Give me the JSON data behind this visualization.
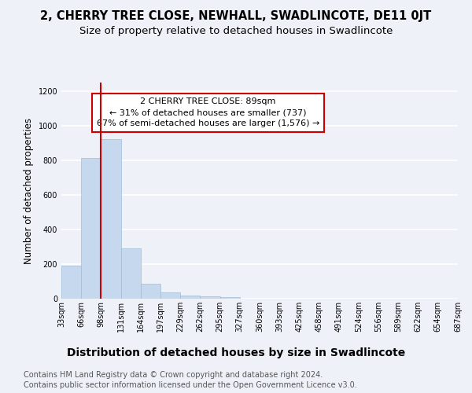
{
  "title": "2, CHERRY TREE CLOSE, NEWHALL, SWADLINCOTE, DE11 0JT",
  "subtitle": "Size of property relative to detached houses in Swadlincote",
  "xlabel": "Distribution of detached houses by size in Swadlincote",
  "ylabel": "Number of detached properties",
  "bar_values": [
    190,
    815,
    925,
    290,
    85,
    35,
    20,
    15,
    10,
    0,
    0,
    0,
    0,
    0,
    0,
    0,
    0,
    0,
    0,
    0
  ],
  "bin_left_edges": [
    33,
    66,
    99,
    132,
    165,
    198,
    231,
    264,
    297,
    330,
    363,
    396,
    429,
    462,
    495,
    528,
    561,
    594,
    627,
    660
  ],
  "bin_width": 33,
  "tick_labels": [
    "33sqm",
    "66sqm",
    "98sqm",
    "131sqm",
    "164sqm",
    "197sqm",
    "229sqm",
    "262sqm",
    "295sqm",
    "327sqm",
    "360sqm",
    "393sqm",
    "425sqm",
    "458sqm",
    "491sqm",
    "524sqm",
    "556sqm",
    "589sqm",
    "622sqm",
    "654sqm",
    "687sqm"
  ],
  "bar_color": "#c5d8ee",
  "bar_edgecolor": "#a0bcd8",
  "vline_x": 99,
  "vline_color": "#cc0000",
  "ylim": [
    0,
    1250
  ],
  "yticks": [
    0,
    200,
    400,
    600,
    800,
    1000,
    1200
  ],
  "annotation_text": "2 CHERRY TREE CLOSE: 89sqm\n← 31% of detached houses are smaller (737)\n67% of semi-detached houses are larger (1,576) →",
  "annotation_box_edgecolor": "#cc0000",
  "annotation_box_facecolor": "#ffffff",
  "footer_line1": "Contains HM Land Registry data © Crown copyright and database right 2024.",
  "footer_line2": "Contains public sector information licensed under the Open Government Licence v3.0.",
  "background_color": "#eef2f8",
  "plot_background_color": "#eef2f8",
  "grid_color": "#ffffff",
  "title_fontsize": 10.5,
  "subtitle_fontsize": 9.5,
  "xlabel_fontsize": 10,
  "ylabel_fontsize": 8.5,
  "tick_fontsize": 7,
  "annotation_fontsize": 8,
  "footer_fontsize": 7
}
